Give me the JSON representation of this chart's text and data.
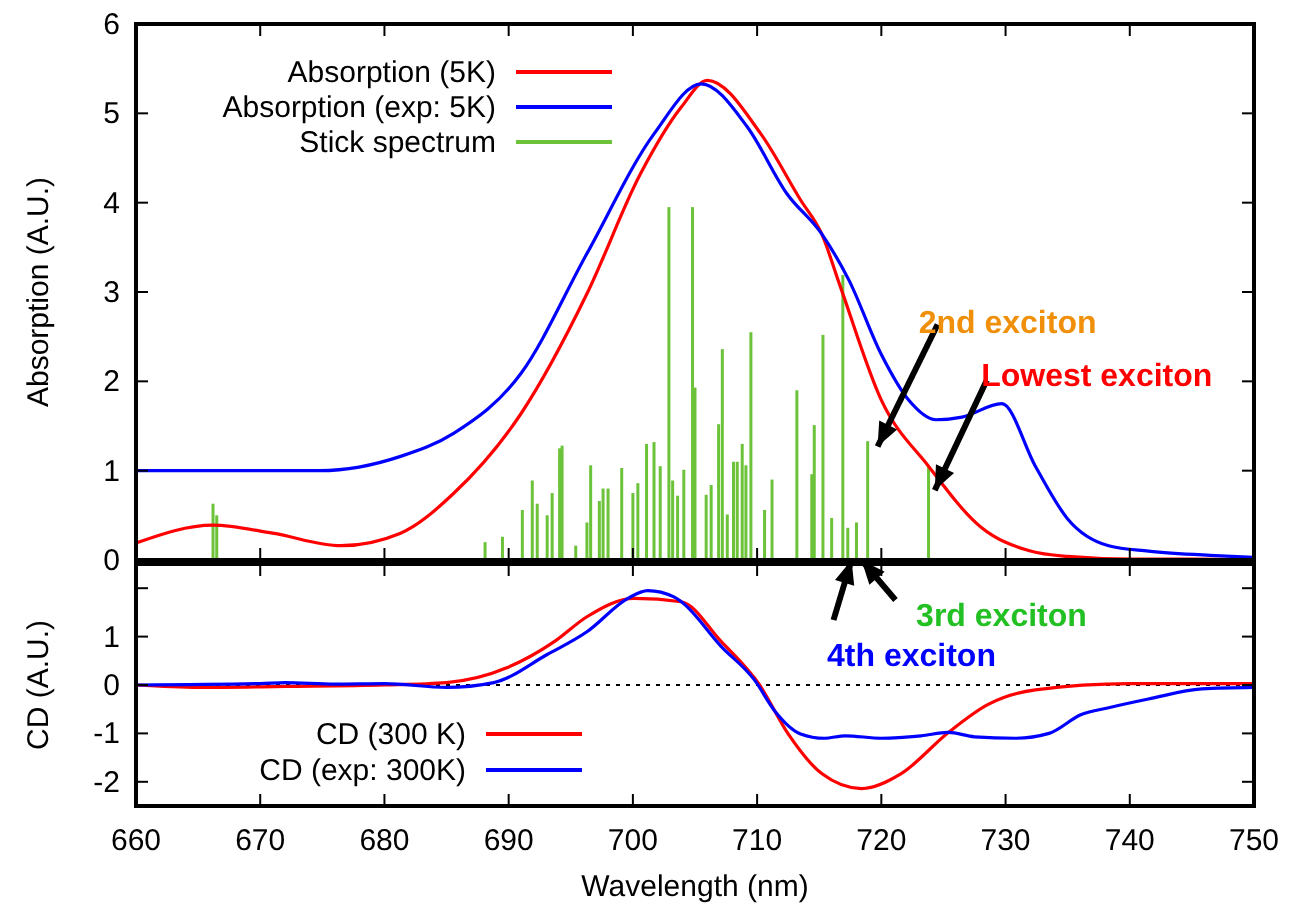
{
  "chart_data": [
    {
      "type": "line",
      "ylabel": "Absorption (A.U.)",
      "xlim": [
        660,
        750
      ],
      "xticks": [
        660,
        670,
        680,
        690,
        700,
        710,
        720,
        730,
        740,
        750
      ],
      "ylim": [
        0,
        6
      ],
      "yticks": [
        0,
        1,
        2,
        3,
        4,
        5,
        6
      ],
      "tick_labels": "y",
      "legend": "top left",
      "grid": false,
      "series": [
        {
          "name": "Absorption (5K)",
          "color": "#ff0000",
          "x": [
            660,
            666.2,
            671,
            676.5,
            681.3,
            685.6,
            691,
            696.3,
            700.6,
            703.9,
            706,
            710.3,
            713.5,
            715.2,
            716.7,
            720,
            723.8,
            728,
            732,
            735,
            740,
            745,
            750
          ],
          "values": [
            0.19,
            0.39,
            0.3,
            0.16,
            0.3,
            0.75,
            1.64,
            2.98,
            4.32,
            5.07,
            5.37,
            4.77,
            4.03,
            3.65,
            3.06,
            1.79,
            1.05,
            0.37,
            0.1,
            0.04,
            0.01,
            0.01,
            0
          ]
        },
        {
          "name": "Absorption (exp: 5K)",
          "color": "#0000ff",
          "x": [
            660,
            669.5,
            674.8,
            681.3,
            685.6,
            691,
            696.3,
            701.7,
            705.5,
            709.2,
            712.4,
            715.2,
            717.4,
            720,
            722.2,
            724.4,
            726.5,
            729.7,
            732.4,
            735,
            738.3,
            741.5,
            746.9,
            750
          ],
          "values": [
            1.0,
            1.0,
            1.0,
            1.16,
            1.42,
            2.09,
            3.43,
            4.77,
            5.33,
            4.85,
            4.1,
            3.65,
            3.13,
            2.3,
            1.79,
            1.57,
            1.6,
            1.75,
            1.05,
            0.46,
            0.16,
            0.1,
            0.05,
            0.03
          ]
        },
        {
          "name": "Stick spectrum",
          "type": "bar",
          "color": "#6cc33a",
          "x": [
            666.2,
            666.5,
            688.1,
            689.5,
            691.1,
            691.9,
            692.3,
            693.1,
            693.5,
            694.1,
            694.3,
            695.4,
            696.3,
            696.6,
            697.3,
            697.6,
            698.0,
            699.1,
            700.0,
            700.4,
            701.1,
            701.7,
            702.2,
            702.9,
            703.2,
            703.6,
            704.1,
            704.8,
            705.0,
            705.9,
            706.3,
            706.9,
            707.2,
            707.6,
            708.1,
            708.4,
            708.8,
            709.1,
            709.5,
            710.6,
            711.2,
            713.2,
            714.4,
            714.6,
            715.3,
            716.0,
            716.9,
            717.3,
            718.0,
            718.9,
            723.8
          ],
          "values": [
            0.63,
            0.5,
            0.2,
            0.26,
            0.56,
            0.89,
            0.63,
            0.5,
            0.75,
            1.25,
            1.28,
            0.16,
            0.42,
            1.06,
            0.66,
            0.8,
            0.8,
            1.03,
            0.75,
            0.86,
            1.3,
            1.32,
            1.05,
            3.95,
            0.89,
            0.72,
            1.01,
            3.95,
            1.93,
            0.73,
            0.84,
            1.52,
            2.36,
            0.51,
            1.1,
            1.1,
            1.3,
            1.06,
            2.55,
            0.56,
            0.9,
            1.9,
            0.96,
            1.51,
            2.52,
            0.47,
            3.19,
            0.36,
            0.42,
            1.33,
            1.05
          ]
        }
      ],
      "annotations": [
        {
          "text": "2nd exciton",
          "x": 719.7,
          "y": 1.27
        },
        {
          "text": "Lowest exciton",
          "x": 724.3,
          "y": 0.78
        },
        {
          "text": "3rd exciton",
          "x": 718.4,
          "y": 0
        },
        {
          "text": "4th exciton",
          "x": 717.6,
          "y": 0
        }
      ]
    },
    {
      "type": "line",
      "xlabel": "Wavelength (nm)",
      "ylabel": "CD (A.U.)",
      "xlim": [
        660,
        750
      ],
      "xticks": [
        660,
        670,
        680,
        690,
        700,
        710,
        720,
        730,
        740,
        750
      ],
      "ylim": [
        -2.5,
        2.5
      ],
      "yticks": [
        {
          "value": 2,
          "label": null
        },
        1,
        0,
        -1,
        -2
      ],
      "legend": "bottom left",
      "grid": false,
      "ref_lines": [
        {
          "axis": "y",
          "value": 0,
          "color": "#000000",
          "line_style": "dotted"
        }
      ],
      "series": [
        {
          "name": "CD (300 K)",
          "color": "#ff0000",
          "x": [
            660,
            665,
            672,
            680,
            685,
            689.9,
            693.7,
            696.3,
            700.1,
            703.9,
            707.1,
            710.2,
            712.5,
            715.2,
            718.4,
            721.6,
            725.4,
            728.6,
            732.4,
            740,
            750
          ],
          "values": [
            0,
            -0.05,
            -0.03,
            0,
            0.05,
            0.36,
            0.9,
            1.41,
            1.79,
            1.72,
            0.9,
            0,
            -1.01,
            -1.83,
            -2.14,
            -1.83,
            -0.98,
            -0.4,
            -0.1,
            0.03,
            0.03
          ]
        },
        {
          "name": "CD (exp: 300K)",
          "color": "#0000ff",
          "x": [
            660,
            670,
            672,
            676,
            680,
            685,
            688.8,
            693.1,
            696.3,
            699.6,
            701.2,
            703.3,
            703.9,
            707.1,
            709.8,
            711.4,
            713.5,
            715.4,
            717.1,
            720,
            723.2,
            725.4,
            727.5,
            730.8,
            733.5,
            736.1,
            738.3,
            741.5,
            745.8,
            750
          ],
          "values": [
            0,
            0.03,
            0.05,
            0.02,
            0.03,
            -0.05,
            0.05,
            0.63,
            1.1,
            1.79,
            1.95,
            1.82,
            1.72,
            0.8,
            0.1,
            -0.53,
            -1.01,
            -1.1,
            -1.05,
            -1.1,
            -1.05,
            -0.98,
            -1.07,
            -1.1,
            -1.0,
            -0.61,
            -0.47,
            -0.29,
            -0.08,
            -0.05
          ]
        }
      ]
    }
  ]
}
